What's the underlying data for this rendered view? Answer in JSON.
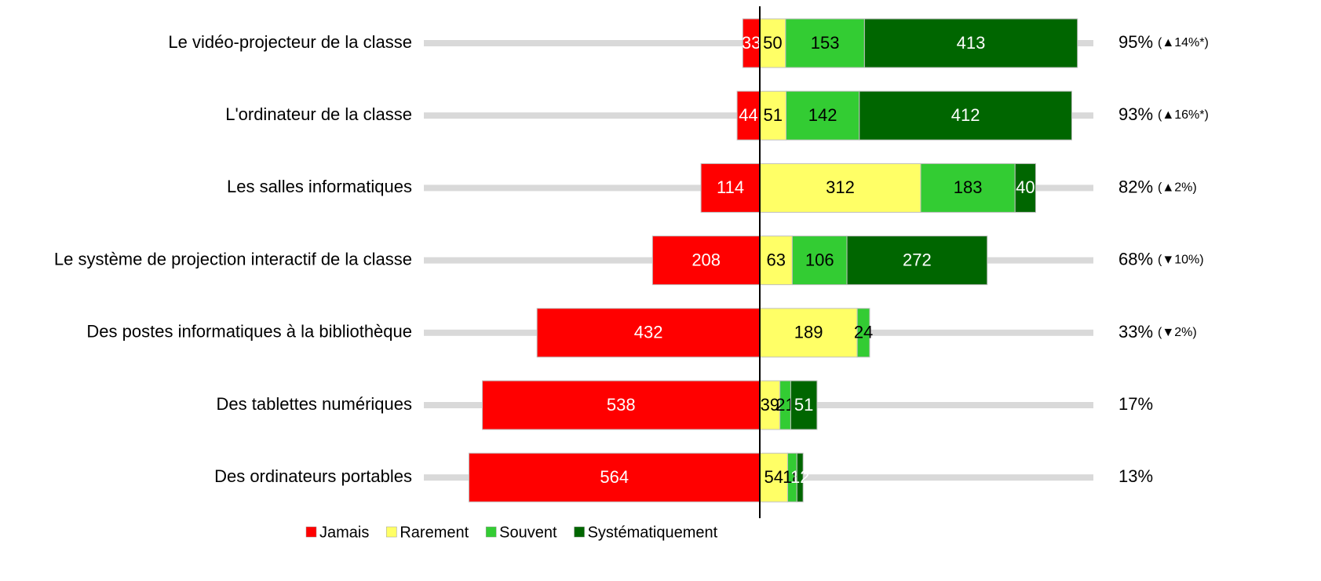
{
  "chart_data": {
    "type": "diverging-bar",
    "categories": [
      "Le vidéo-projecteur de la classe",
      "L'ordinateur de la classe",
      "Les salles informatiques",
      "Le système de projection interactif de la classe",
      "Des postes informatiques à la bibliothèque",
      "Des tablettes numériques",
      "Des ordinateurs portables"
    ],
    "series": [
      {
        "name": "Jamais",
        "color": "#ff0000",
        "text_color": "#ffffff",
        "side": "left",
        "values": [
          33,
          44,
          114,
          208,
          432,
          538,
          564
        ]
      },
      {
        "name": "Rarement",
        "color": "#ffff66",
        "text_color": "#000000",
        "side": "right",
        "values": [
          50,
          51,
          312,
          63,
          189,
          39,
          54
        ]
      },
      {
        "name": "Souvent",
        "color": "#33cc33",
        "text_color": "#000000",
        "side": "right",
        "values": [
          153,
          142,
          183,
          106,
          24,
          21,
          18
        ]
      },
      {
        "name": "Systématiquement",
        "color": "#006600",
        "text_color": "#ffffff",
        "side": "right",
        "values": [
          413,
          412,
          40,
          272,
          null,
          51,
          12
        ]
      }
    ],
    "rates": [
      "95%",
      "93%",
      "82%",
      "68%",
      "33%",
      "17%",
      "13%"
    ],
    "changes": [
      "(▲14%*)",
      "(▲16%*)",
      "(▲2%)",
      "(▼10%)",
      "(▼2%)",
      null,
      null
    ]
  }
}
